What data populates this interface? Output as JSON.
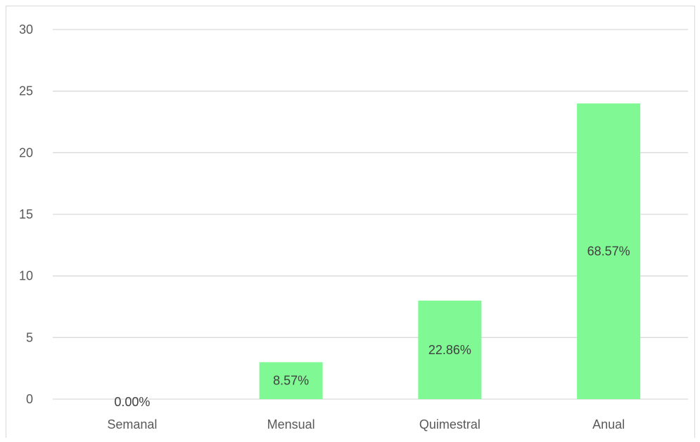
{
  "chart_data": {
    "type": "bar",
    "categories": [
      "Semanal",
      "Mensual",
      "Quimestral",
      "Anual"
    ],
    "values": [
      0,
      3,
      8,
      24
    ],
    "data_labels": [
      "0.00%",
      "8.57%",
      "22.86%",
      "68.57%"
    ],
    "title": "",
    "xlabel": "",
    "ylabel": "",
    "ylim": [
      0,
      30
    ],
    "yticks": [
      "0",
      "5",
      "10",
      "15",
      "20",
      "25",
      "30"
    ],
    "grid": true,
    "legend": "none",
    "bar_color": "#80f994",
    "grid_color": "#d9d9d9"
  }
}
